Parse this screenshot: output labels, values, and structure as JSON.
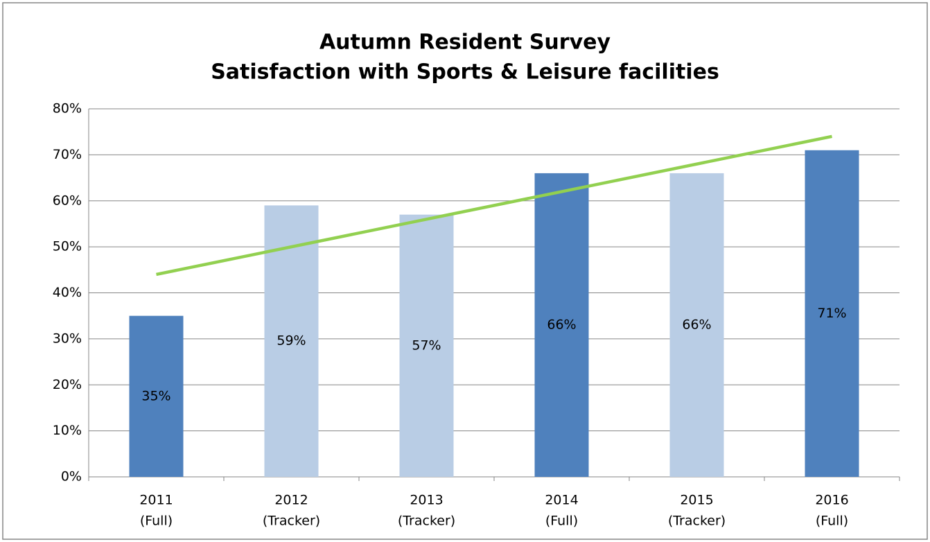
{
  "chart_data": {
    "type": "bar",
    "title": [
      "Autumn Resident Survey",
      "Satisfaction  with Sports & Leisure facilities"
    ],
    "categories": [
      "2011",
      "2012",
      "2013",
      "2014",
      "2015",
      "2016"
    ],
    "sublabels": [
      "(Full)",
      "(Tracker)",
      "(Tracker)",
      "(Full)",
      "(Tracker)",
      "(Full)"
    ],
    "values": [
      35,
      59,
      57,
      66,
      66,
      71
    ],
    "value_labels": [
      "35%",
      "59%",
      "57%",
      "66%",
      "66%",
      "71%"
    ],
    "colors": [
      "#4f81bd",
      "#b9cde5",
      "#b9cde5",
      "#4f81bd",
      "#b9cde5",
      "#4f81bd"
    ],
    "trendline": {
      "color": "#92d050",
      "values": [
        44,
        74
      ]
    },
    "ylim": [
      0,
      80
    ],
    "yticks": [
      {
        "value": 0,
        "label": "0%"
      },
      {
        "value": 10,
        "label": "10%"
      },
      {
        "value": 20,
        "label": "20%"
      },
      {
        "value": 30,
        "label": "30%"
      },
      {
        "value": 40,
        "label": "40%"
      },
      {
        "value": 50,
        "label": "50%"
      },
      {
        "value": 60,
        "label": "60%"
      },
      {
        "value": 70,
        "label": "70%"
      },
      {
        "value": 80,
        "label": "80%"
      }
    ],
    "grid": true
  }
}
